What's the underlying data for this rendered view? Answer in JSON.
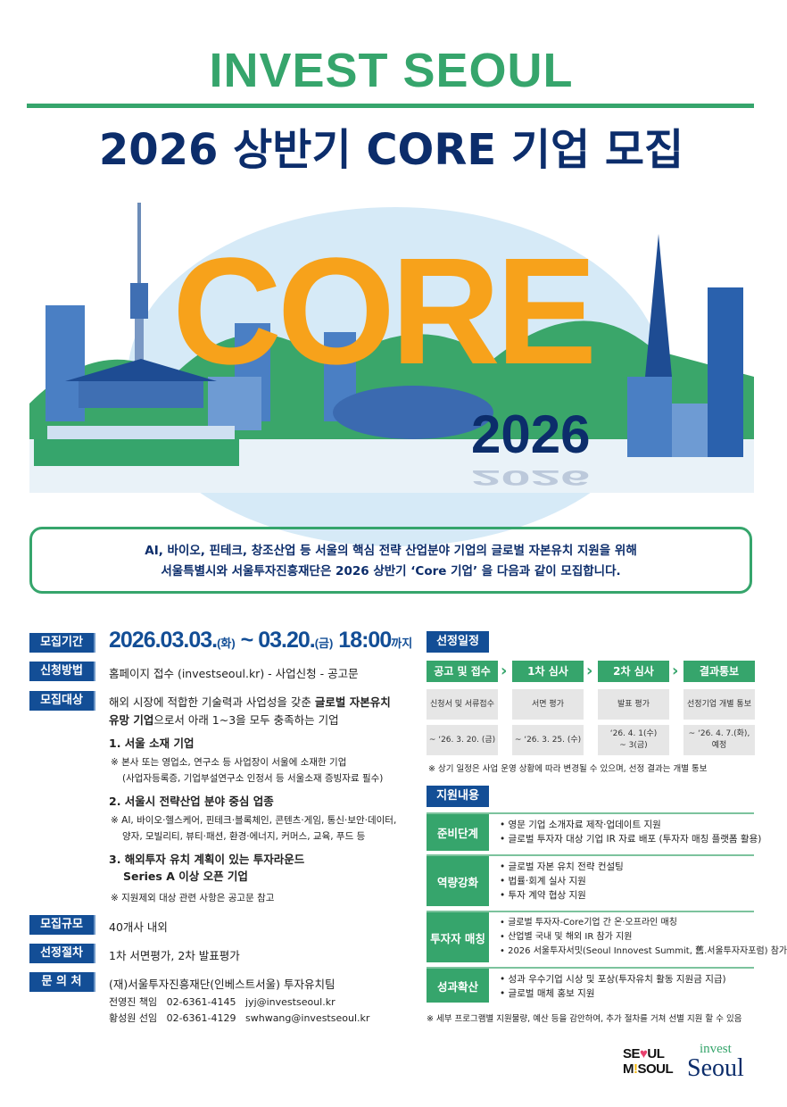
{
  "header": {
    "brand": "INVEST SEOUL",
    "title": "2026 상반기 CORE 기업 모집"
  },
  "illustration": {
    "core": "CORE",
    "year": "2026",
    "colors": {
      "core": "#f7a21b",
      "navy": "#0c2d6b",
      "green": "#36a56c",
      "sky": "#d6eaf7"
    }
  },
  "intro": {
    "line1": "AI, 바이오, 핀테크, 창조산업 등 서울의  핵심 전략 산업분야 기업의 글로벌 자본유치 지원을 위해",
    "line2": "서울특별시와 서울투자진흥재단은 2026 상반기 ‘Core 기업’ 을 다음과 같이 모집합니다."
  },
  "left": {
    "period": {
      "label": "모집기간",
      "start": "2026.03.03.",
      "start_day": "(화)",
      "sep": " ~ ",
      "end": "03.20.",
      "end_day": "(금)",
      "time": " 18:00",
      "until": "까지"
    },
    "method": {
      "label": "신청방법",
      "text": "홈페이지 접수 (investseoul.kr) - 사업신청 - 공고문"
    },
    "target": {
      "label": "모집대상",
      "line1a": "해외 시장에 적합한 기술력과 사업성을 갖춘 ",
      "line1b": "글로벌 자본유치",
      "line2a": "유망 기업",
      "line2b": "으로서 아래 1~3을 모두 충족하는 기업",
      "items": [
        {
          "title": "1. 서울 소재 기업",
          "notes": [
            "※  본사 또는 영업소, 연구소 등 사업장이 서울에 소재한 기업",
            "(사업자등록증, 기업부설연구소 인정서 등 서울소재 증빙자료 필수)"
          ]
        },
        {
          "title": "2. 서울시 전략산업 분야 중심 업종",
          "notes": [
            "※  AI, 바이오·헬스케어, 핀테크·블록체인, 콘텐츠·게임, 통신·보안·데이터,",
            "양자, 모빌리티, 뷰티·패션, 환경·에너지, 커머스, 교육, 푸드 등"
          ]
        },
        {
          "title": "3. 해외투자 유치 계획이 있는 투자라운드",
          "title2": "Series A 이상 오픈 기업"
        }
      ],
      "footnote": "※  지원제외 대상 관련 사항은 공고문 참고"
    },
    "scale": {
      "label": "모집규모",
      "text": "40개사 내외"
    },
    "procedure": {
      "label": "선정절차",
      "text": "1차 서면평가, 2차 발표평가"
    },
    "contact": {
      "label": "문 의 처",
      "org": "(재)서울투자진흥재단(인베스트서울) 투자유치팀",
      "people": [
        "전영진 책임   02-6361-4145   jyj@investseoul.kr",
        "황성원 선임   02-6361-4129   swhwang@investseoul.kr"
      ]
    }
  },
  "schedule": {
    "label": "선정일정",
    "steps": [
      {
        "name": "공고 및 접수",
        "desc": "신청서 및 서류접수",
        "date": "~ ‘26. 3. 20. (금)"
      },
      {
        "name": "1차 심사",
        "desc": "서면 평가",
        "date": "~ ‘26. 3. 25. (수)"
      },
      {
        "name": "2차 심사",
        "desc": "발표 평가",
        "date": "‘26. 4. 1(수)\n~ 3(금)"
      },
      {
        "name": "결과통보",
        "desc": "선정기업 개별 통보",
        "date": "~ ‘26. 4. 7.(화),\n예정"
      }
    ],
    "note": "※  상기 일정은 사업 운영 상황에 따라 변경될 수 있으며, 선정 결과는 개별 통보"
  },
  "support": {
    "label": "지원내용",
    "rows": [
      {
        "name": "준비단계",
        "items": [
          "영문 기업 소개자료 제작·업데이트 지원",
          "글로벌 투자자 대상 기업 IR 자료 배포 (투자자 매칭 플랫폼 활용)"
        ]
      },
      {
        "name": "역량강화",
        "items": [
          "글로벌 자본 유치 전략 컨설팅",
          "법률·회계 실사 지원",
          "투자 계약 협상 지원"
        ]
      },
      {
        "name": "투자자 매칭",
        "items": [
          "글로벌 투자자-Core기업 간 온·오프라인 매칭",
          "산업별 국내 및 해외 IR 참가 지원",
          "2026 서울투자서밋(Seoul Innovest Summit, 舊.서울투자자포럼) 참가"
        ]
      },
      {
        "name": "성과확산",
        "items": [
          "성과 우수기업 시상 및 포상(투자유치 활동 지원금 지급)",
          "글로벌 매체 홍보 지원"
        ]
      }
    ],
    "note": "※ 세부 프로그램별 지원물량, 예산 등을 감안하여,  추가 절차를 거쳐 선별 지원 할 수 있음"
  },
  "logos": {
    "seoul_my_soul": "SEOUL MY SOUL",
    "invest_seoul_top": "invest",
    "invest_seoul_bottom": "Seoul"
  }
}
